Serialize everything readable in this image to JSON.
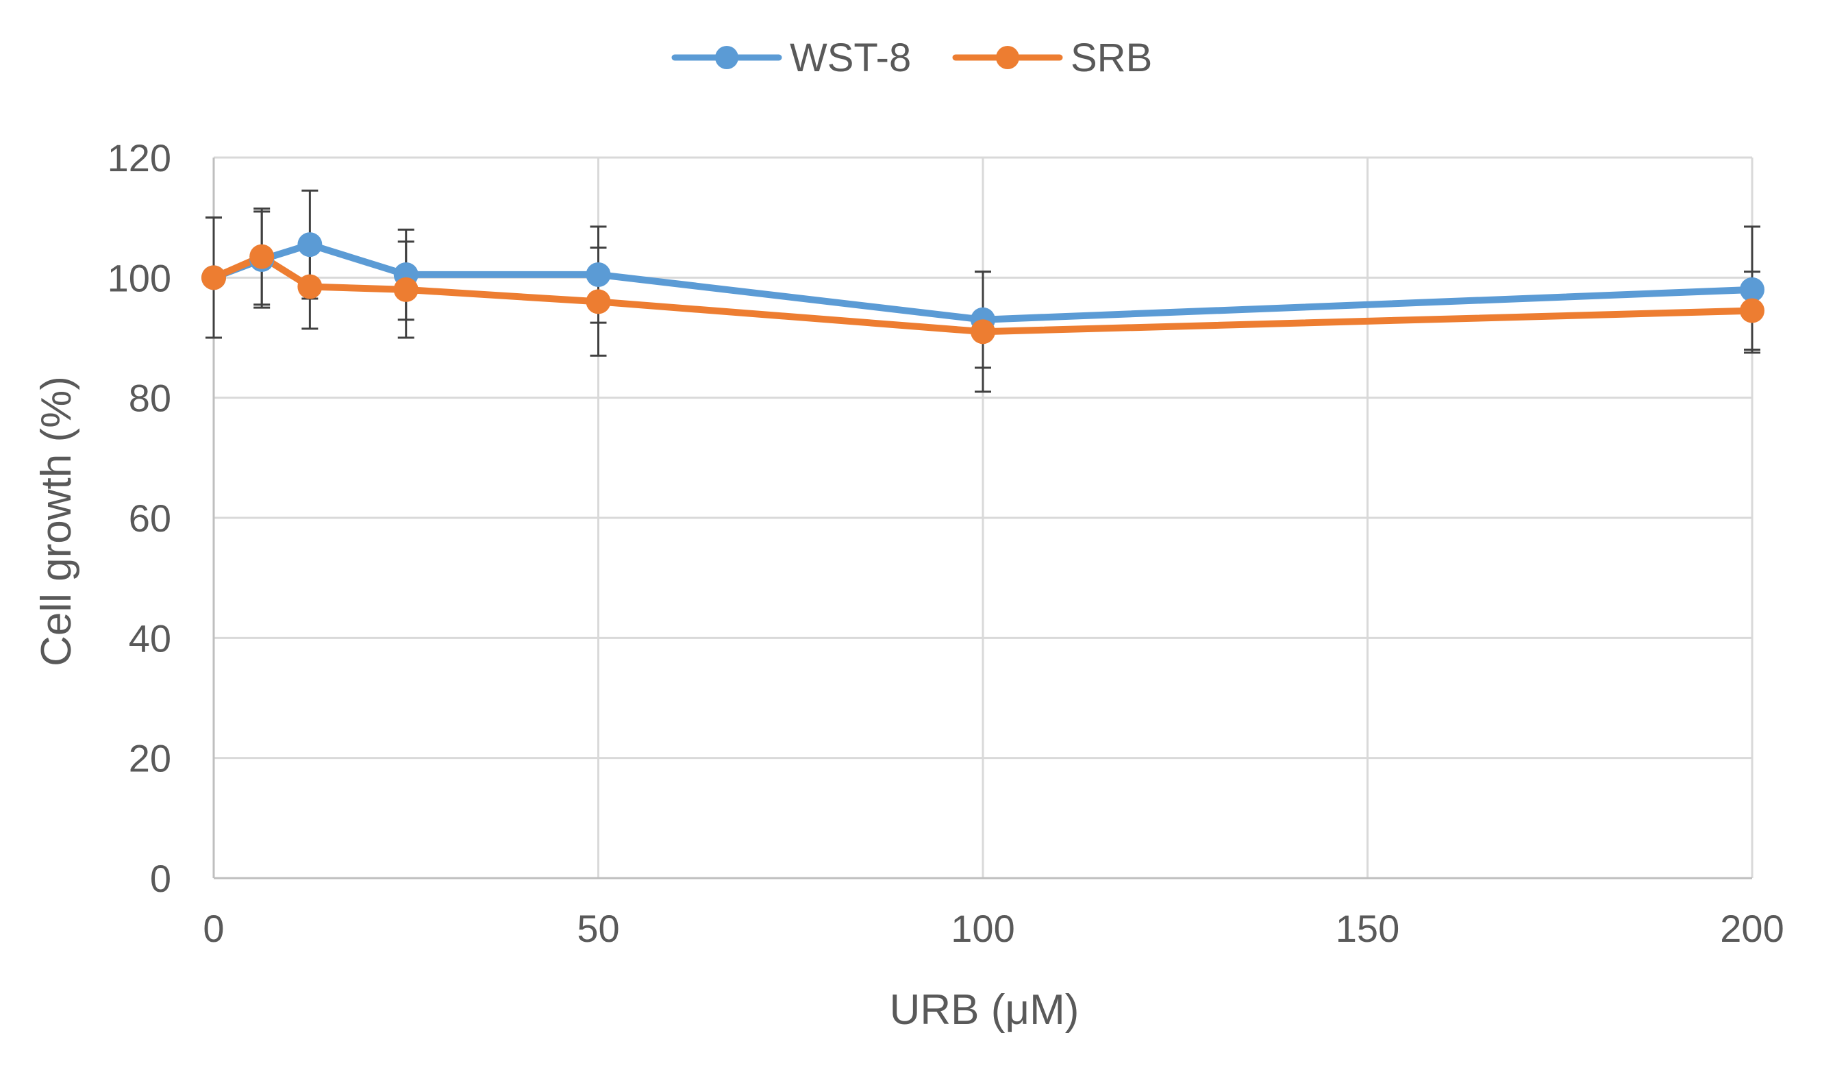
{
  "chart_data": {
    "type": "line",
    "title": "",
    "xlabel": "URB (μM)",
    "ylabel": "Cell growth (%)",
    "xlim": [
      0,
      200
    ],
    "ylim": [
      0,
      120
    ],
    "x_ticks": [
      0,
      50,
      100,
      150,
      200
    ],
    "x_tick_labels": [
      "0",
      "50",
      "100",
      "150",
      "200"
    ],
    "y_ticks": [
      0,
      20,
      40,
      60,
      80,
      100,
      120
    ],
    "y_tick_labels": [
      "0",
      "20",
      "40",
      "60",
      "80",
      "100",
      "120"
    ],
    "grid": true,
    "legend_position": "top-center",
    "x": [
      0,
      6.25,
      12.5,
      25,
      50,
      100,
      200
    ],
    "series": [
      {
        "name": "WST-8",
        "color": "#5B9BD5",
        "values": [
          100,
          103,
          105.5,
          100.5,
          100.5,
          93,
          98
        ],
        "errors": [
          10,
          8,
          9,
          7.5,
          8,
          8,
          10.5
        ]
      },
      {
        "name": "SRB",
        "color": "#ED7D31",
        "values": [
          100,
          103.5,
          98.5,
          98,
          96,
          91,
          94.5
        ],
        "errors": [
          10,
          8,
          7,
          8,
          9,
          10,
          6.5
        ]
      }
    ],
    "errorbar_color": "#404040",
    "grid_color": "#d9d9d9",
    "axis_color": "#bfbfbf"
  }
}
